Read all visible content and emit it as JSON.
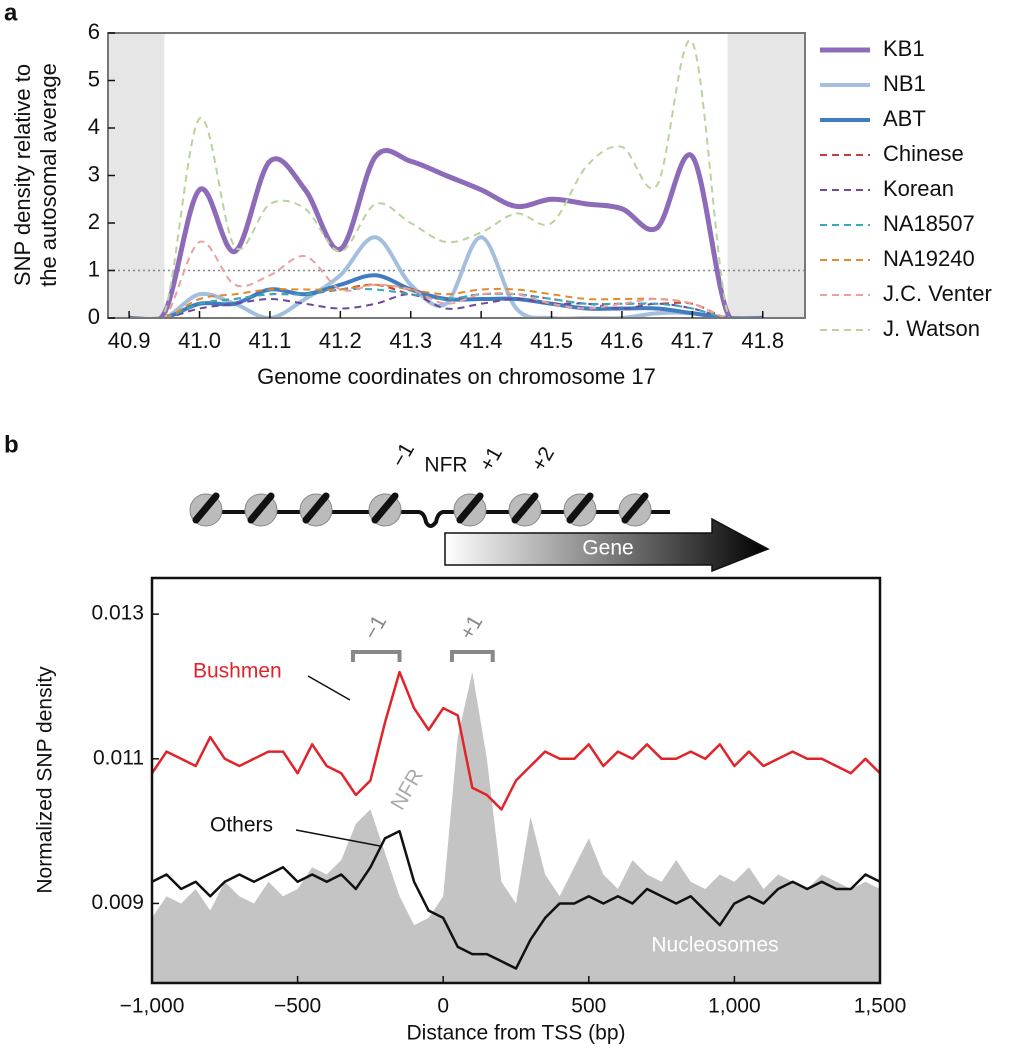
{
  "diagram": {
    "labels": [
      "−1",
      "NFR",
      "+1",
      "+2"
    ],
    "gene": "Gene"
  },
  "chart_data": [
    {
      "type": "line",
      "panel": "a",
      "smooth": true,
      "xlabel": "Genome coordinates on chromosome 17",
      "ylabel": [
        "SNP density relative to",
        "the autosomal average"
      ],
      "xlim": [
        40.87,
        41.86
      ],
      "ylim": [
        0,
        6
      ],
      "xticks": [
        40.9,
        {
          "value": 41,
          "label": "41.0"
        },
        41.1,
        41.2,
        41.3,
        41.4,
        41.5,
        41.6,
        41.7,
        41.8
      ],
      "yticks": [
        0,
        1,
        2,
        3,
        4,
        5,
        6
      ],
      "shaded_regions": [
        [
          40.87,
          40.95
        ],
        [
          41.75,
          41.86
        ]
      ],
      "reference_line": 1,
      "legend": "right",
      "x": [
        40.9,
        40.95,
        41,
        41.05,
        41.1,
        41.15,
        41.2,
        41.25,
        41.3,
        41.35,
        41.4,
        41.45,
        41.5,
        41.55,
        41.6,
        41.65,
        41.7,
        41.75,
        41.8
      ],
      "series": [
        {
          "name": "KB1",
          "color": "#8e6bb8",
          "width": 5,
          "dashed": false,
          "values": [
            0,
            0.1,
            2.7,
            1.4,
            3.3,
            2.7,
            1.45,
            3.4,
            3.3,
            3.0,
            2.7,
            2.35,
            2.5,
            2.4,
            2.3,
            1.9,
            3.4,
            0.1,
            0
          ]
        },
        {
          "name": "NB1",
          "color": "#a4bfdd",
          "width": 4,
          "dashed": false,
          "values": [
            0,
            0,
            0.5,
            0.3,
            0,
            0.4,
            0.9,
            1.7,
            0.7,
            0.3,
            1.7,
            0.2,
            0,
            0,
            0,
            0.1,
            0.1,
            0,
            0
          ]
        },
        {
          "name": "ABT",
          "color": "#3f7cc0",
          "width": 4,
          "dashed": false,
          "values": [
            0,
            0,
            0.3,
            0.3,
            0.6,
            0.5,
            0.7,
            0.9,
            0.6,
            0.4,
            0.4,
            0.4,
            0.3,
            0.2,
            0.2,
            0.2,
            0.1,
            0,
            0
          ]
        },
        {
          "name": "Chinese",
          "color": "#c0403a",
          "width": 2,
          "dashed": true,
          "values": [
            0,
            0,
            0.3,
            0.4,
            0.5,
            0.5,
            0.6,
            0.7,
            0.5,
            0.4,
            0.5,
            0.5,
            0.4,
            0.3,
            0.3,
            0.3,
            0.3,
            0,
            0
          ]
        },
        {
          "name": "Korean",
          "color": "#6e4a9a",
          "width": 2,
          "dashed": true,
          "values": [
            0,
            0,
            0.2,
            0.3,
            0.4,
            0.3,
            0.2,
            0.3,
            0.5,
            0.2,
            0.3,
            0.4,
            0.3,
            0.3,
            0.2,
            0.3,
            0.2,
            0,
            0
          ]
        },
        {
          "name": "NA18507",
          "color": "#36a8c0",
          "width": 2,
          "dashed": true,
          "values": [
            0,
            0,
            0.3,
            0.4,
            0.5,
            0.5,
            0.6,
            0.6,
            0.5,
            0.4,
            0.5,
            0.5,
            0.4,
            0.3,
            0.3,
            0.3,
            0.2,
            0,
            0
          ]
        },
        {
          "name": "NA19240",
          "color": "#e08a30",
          "width": 2,
          "dashed": true,
          "values": [
            0,
            0,
            0.4,
            0.5,
            0.6,
            0.6,
            0.6,
            0.7,
            0.6,
            0.5,
            0.6,
            0.6,
            0.5,
            0.4,
            0.4,
            0.4,
            0.3,
            0,
            0
          ]
        },
        {
          "name": "J.C. Venter",
          "color": "#e8a0a0",
          "width": 2,
          "dashed": true,
          "values": [
            0,
            0,
            1.6,
            0.7,
            0.9,
            1.3,
            0.6,
            0.7,
            0.6,
            0.3,
            0.5,
            0.5,
            0.3,
            0.2,
            0.3,
            0.4,
            0.3,
            0,
            0
          ]
        },
        {
          "name": "J. Watson",
          "color": "#b9d39a",
          "width": 2,
          "dashed": true,
          "values": [
            0,
            0.1,
            4.2,
            1.5,
            2.4,
            2.3,
            1.4,
            2.4,
            2.0,
            1.6,
            1.8,
            2.2,
            2.0,
            3.2,
            3.6,
            2.8,
            5.8,
            0.1,
            0
          ]
        }
      ]
    },
    {
      "type": "line",
      "panel": "b",
      "smooth": false,
      "xlabel": "Distance from TSS (bp)",
      "ylabel": [
        "Normalized SNP density"
      ],
      "xlim": [
        -1000,
        1500
      ],
      "ylim": [
        0.0079,
        0.0135
      ],
      "xticks": [
        {
          "value": -1000,
          "label": "−1,000"
        },
        {
          "value": -500,
          "label": "−500"
        },
        0,
        500,
        {
          "value": 1000,
          "label": "1,000"
        },
        {
          "value": 1500,
          "label": "1,500"
        }
      ],
      "yticks": [
        0.009,
        0.011,
        0.013
      ],
      "annotations": [
        "NFR"
      ],
      "brackets": [
        {
          "label": "−1",
          "range": [
            -310,
            -150
          ]
        },
        {
          "label": "+1",
          "range": [
            30,
            170
          ]
        }
      ],
      "x": [
        -1000,
        -950,
        -900,
        -850,
        -800,
        -750,
        -700,
        -650,
        -600,
        -550,
        -500,
        -450,
        -400,
        -350,
        -300,
        -250,
        -200,
        -150,
        -100,
        -50,
        0,
        50,
        100,
        150,
        200,
        250,
        300,
        350,
        400,
        450,
        500,
        550,
        600,
        650,
        700,
        750,
        800,
        850,
        900,
        950,
        1000,
        1050,
        1100,
        1150,
        1200,
        1250,
        1300,
        1350,
        1400,
        1450,
        1500
      ],
      "series": [
        {
          "name": "Nucleosomes",
          "color": "#c4c4c4",
          "style": "area",
          "values": [
            0.0088,
            0.0091,
            0.009,
            0.0092,
            0.0089,
            0.0093,
            0.0091,
            0.009,
            0.0093,
            0.0091,
            0.0092,
            0.0095,
            0.0094,
            0.0096,
            0.0101,
            0.0103,
            0.0097,
            0.0091,
            0.0087,
            0.0088,
            0.0091,
            0.0113,
            0.0122,
            0.011,
            0.0093,
            0.009,
            0.0102,
            0.0094,
            0.0091,
            0.0095,
            0.0099,
            0.0094,
            0.0092,
            0.0096,
            0.0094,
            0.0093,
            0.0096,
            0.0093,
            0.0092,
            0.0094,
            0.0093,
            0.0095,
            0.0092,
            0.0094,
            0.0093,
            0.0092,
            0.0094,
            0.0093,
            0.0092,
            0.0093,
            0.0092
          ]
        },
        {
          "name": "Bushmen",
          "color": "#e0242a",
          "style": "line",
          "values": [
            0.0108,
            0.0111,
            0.011,
            0.0109,
            0.0113,
            0.011,
            0.0109,
            0.011,
            0.0111,
            0.0111,
            0.0108,
            0.0112,
            0.0109,
            0.0108,
            0.0105,
            0.0107,
            0.0115,
            0.0122,
            0.0117,
            0.0114,
            0.0117,
            0.0116,
            0.0106,
            0.0105,
            0.0103,
            0.0107,
            0.0109,
            0.0111,
            0.011,
            0.011,
            0.0112,
            0.0109,
            0.0111,
            0.011,
            0.0112,
            0.011,
            0.011,
            0.0111,
            0.011,
            0.0112,
            0.0109,
            0.0111,
            0.0109,
            0.011,
            0.0111,
            0.011,
            0.011,
            0.0109,
            0.0108,
            0.011,
            0.0108
          ]
        },
        {
          "name": "Others",
          "color": "#111111",
          "style": "line",
          "values": [
            0.0093,
            0.0094,
            0.0092,
            0.0093,
            0.0091,
            0.0093,
            0.0094,
            0.0093,
            0.0094,
            0.0095,
            0.0093,
            0.0094,
            0.0093,
            0.0094,
            0.0092,
            0.0095,
            0.0099,
            0.01,
            0.0093,
            0.0089,
            0.0088,
            0.0084,
            0.0083,
            0.0083,
            0.0082,
            0.0081,
            0.0085,
            0.0088,
            0.009,
            0.009,
            0.0091,
            0.009,
            0.0091,
            0.009,
            0.0092,
            0.0091,
            0.009,
            0.0091,
            0.0089,
            0.0087,
            0.009,
            0.0091,
            0.009,
            0.0092,
            0.0093,
            0.0092,
            0.0093,
            0.0092,
            0.0092,
            0.0094,
            0.0093
          ]
        }
      ]
    }
  ]
}
